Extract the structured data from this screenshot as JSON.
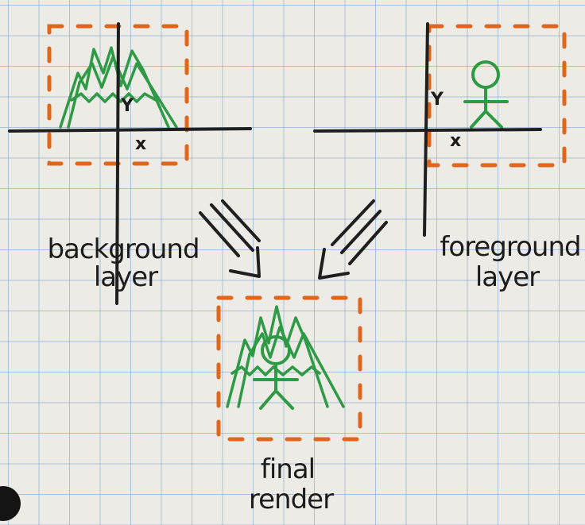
{
  "panels": {
    "background": {
      "label_line1": "background",
      "label_line2": "layer",
      "x_axis": "x",
      "y_axis": "Y"
    },
    "foreground": {
      "label_line1": "foreground",
      "label_line2": "layer",
      "x_axis": "x",
      "y_axis": "Y"
    },
    "final": {
      "label_line1": "final",
      "label_line2": "render"
    }
  },
  "colors": {
    "ink": "#1f1f1f",
    "frame": "#e0661c",
    "drawing": "#2f9a45",
    "grid": "#78a0cd"
  }
}
